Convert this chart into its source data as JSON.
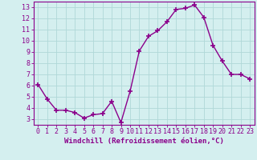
{
  "x": [
    0,
    1,
    2,
    3,
    4,
    5,
    6,
    7,
    8,
    9,
    10,
    11,
    12,
    13,
    14,
    15,
    16,
    17,
    18,
    19,
    20,
    21,
    22,
    23
  ],
  "y": [
    6.1,
    4.8,
    3.8,
    3.8,
    3.6,
    3.1,
    3.4,
    3.5,
    4.6,
    2.7,
    5.5,
    9.1,
    10.4,
    10.9,
    11.7,
    12.8,
    12.9,
    13.2,
    12.1,
    9.6,
    8.2,
    7.0,
    7.0,
    6.6
  ],
  "line_color": "#8b008b",
  "marker": "+",
  "marker_size": 4,
  "marker_linewidth": 1.2,
  "linewidth": 1.0,
  "bg_color": "#d4efef",
  "grid_color": "#b0d8d8",
  "xlabel": "Windchill (Refroidissement éolien,°C)",
  "xlabel_fontsize": 6.5,
  "tick_fontsize": 6.0,
  "ylim": [
    2.5,
    13.5
  ],
  "yticks": [
    3,
    4,
    5,
    6,
    7,
    8,
    9,
    10,
    11,
    12,
    13
  ],
  "xlim": [
    -0.5,
    23.5
  ],
  "xticks": [
    0,
    1,
    2,
    3,
    4,
    5,
    6,
    7,
    8,
    9,
    10,
    11,
    12,
    13,
    14,
    15,
    16,
    17,
    18,
    19,
    20,
    21,
    22,
    23
  ],
  "spine_color": "#8b008b"
}
